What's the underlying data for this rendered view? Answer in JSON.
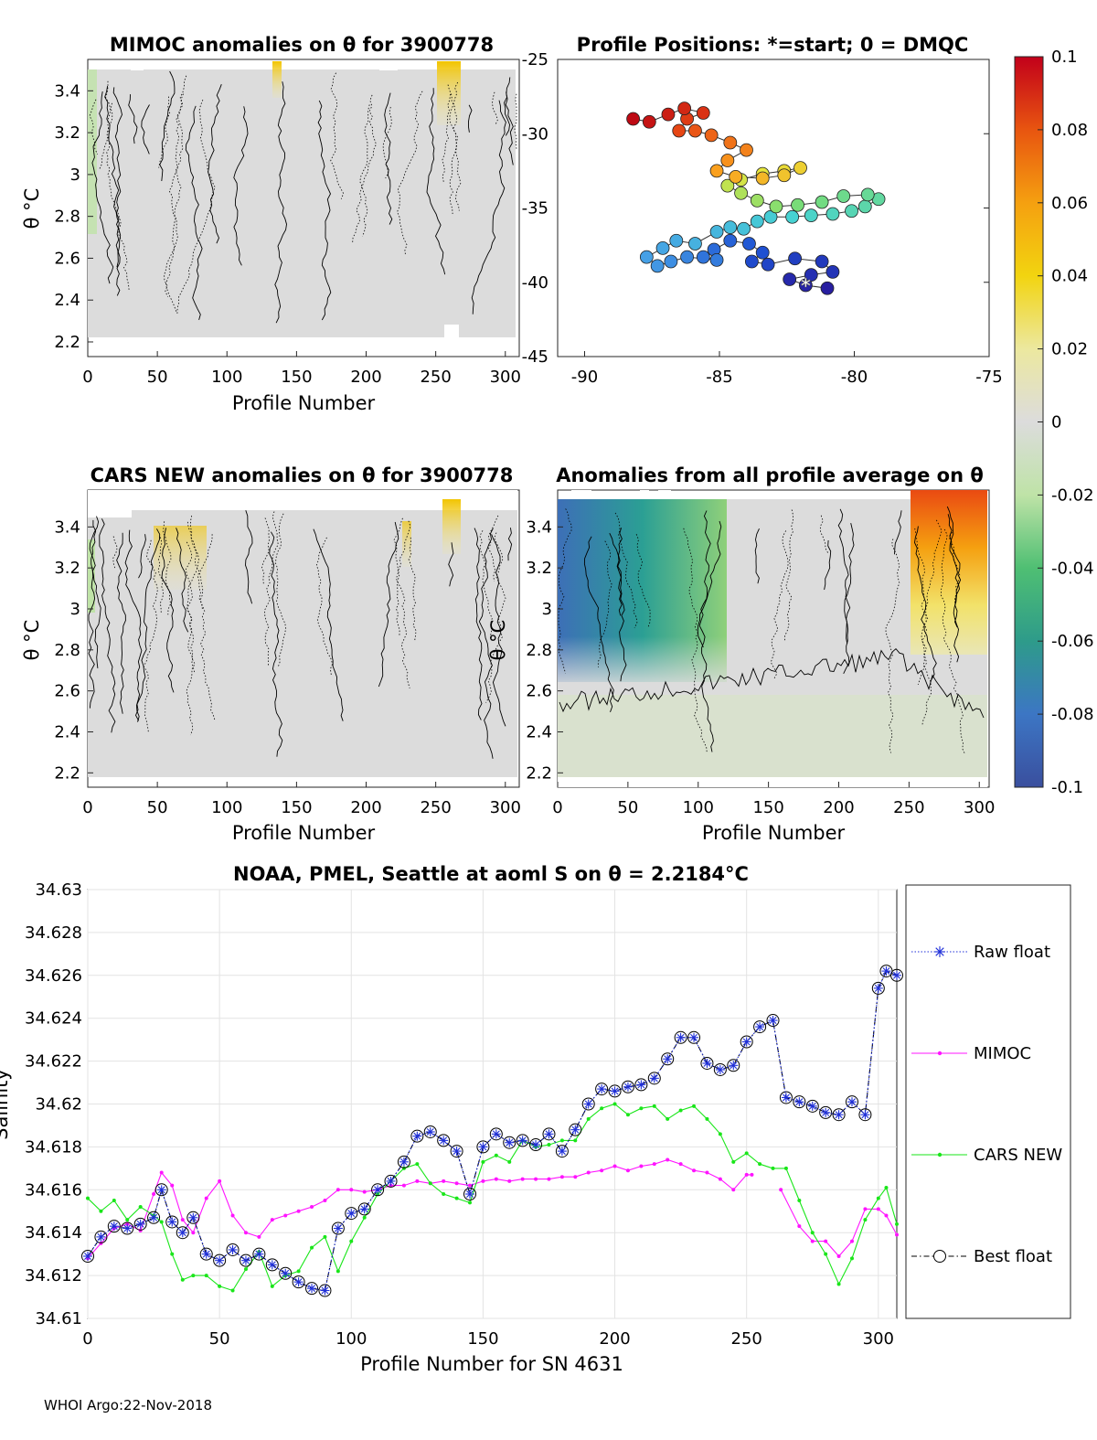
{
  "footer": "WHOI Argo:22-Nov-2018",
  "colorbar": {
    "ticks": [
      "0.1",
      "0.08",
      "0.06",
      "0.04",
      "0.02",
      "0",
      "-0.02",
      "-0.04",
      "-0.06",
      "-0.08",
      "-0.1"
    ],
    "range": [
      -0.1,
      0.1
    ]
  },
  "chart_data": [
    {
      "id": "mimoc",
      "type": "heatmap",
      "title": "MIMOC anomalies on θ  for 3900778",
      "xlabel": "Profile Number",
      "ylabel": "θ °C",
      "xlim": [
        0,
        310
      ],
      "ylim": [
        2.13,
        3.55
      ],
      "xticks": [
        "0",
        "50",
        "100",
        "150",
        "200",
        "250",
        "300"
      ],
      "yticks": [
        "2.2",
        "2.4",
        "2.6",
        "2.8",
        "3",
        "3.2",
        "3.4"
      ],
      "note": "mostly near-zero anomalies (grey), small positive patches near profiles 250-265 at theta > 3.2"
    },
    {
      "id": "positions",
      "type": "scatter",
      "title": "Profile Positions: *=start; 0 = DMQC",
      "xlim": [
        -91,
        -75
      ],
      "ylim": [
        -45,
        -25
      ],
      "xticks": [
        "-90",
        "-85",
        "-80",
        "-75"
      ],
      "yticks": [
        "-25",
        "-30",
        "-35",
        "-40",
        "-45"
      ],
      "start_marker": "*",
      "start_position": [
        -81.8,
        -40.2
      ],
      "track": [
        [
          -81.0,
          -40.4
        ],
        [
          -81.8,
          -40.2
        ],
        [
          -82.4,
          -39.8
        ],
        [
          -81.6,
          -39.5
        ],
        [
          -80.8,
          -39.3
        ],
        [
          -81.2,
          -38.6
        ],
        [
          -82.2,
          -38.4
        ],
        [
          -83.2,
          -38.8
        ],
        [
          -83.8,
          -38.6
        ],
        [
          -83.4,
          -38.0
        ],
        [
          -83.9,
          -37.4
        ],
        [
          -84.6,
          -37.2
        ],
        [
          -85.2,
          -37.8
        ],
        [
          -85.6,
          -38.3
        ],
        [
          -85.1,
          -38.5
        ],
        [
          -86.2,
          -38.3
        ],
        [
          -86.8,
          -38.6
        ],
        [
          -87.3,
          -38.9
        ],
        [
          -87.7,
          -38.3
        ],
        [
          -87.1,
          -37.7
        ],
        [
          -86.6,
          -37.2
        ],
        [
          -85.9,
          -37.4
        ],
        [
          -85.1,
          -36.6
        ],
        [
          -84.6,
          -36.3
        ],
        [
          -84.1,
          -36.4
        ],
        [
          -83.6,
          -35.9
        ],
        [
          -83.1,
          -35.6
        ],
        [
          -82.3,
          -35.6
        ],
        [
          -81.6,
          -35.5
        ],
        [
          -80.8,
          -35.4
        ],
        [
          -80.1,
          -35.2
        ],
        [
          -79.6,
          -34.9
        ],
        [
          -79.1,
          -34.4
        ],
        [
          -79.5,
          -34.1
        ],
        [
          -80.4,
          -34.2
        ],
        [
          -81.2,
          -34.6
        ],
        [
          -82.1,
          -34.8
        ],
        [
          -82.9,
          -34.9
        ],
        [
          -83.6,
          -34.5
        ],
        [
          -84.2,
          -34.0
        ],
        [
          -84.7,
          -33.5
        ],
        [
          -84.2,
          -33.1
        ],
        [
          -83.4,
          -32.7
        ],
        [
          -82.6,
          -32.5
        ],
        [
          -82.0,
          -32.3
        ],
        [
          -82.6,
          -32.8
        ],
        [
          -83.4,
          -33.0
        ],
        [
          -84.4,
          -32.9
        ],
        [
          -85.1,
          -32.5
        ],
        [
          -84.7,
          -31.8
        ],
        [
          -84.0,
          -31.1
        ],
        [
          -84.6,
          -30.6
        ],
        [
          -85.3,
          -30.1
        ],
        [
          -85.9,
          -29.8
        ],
        [
          -86.5,
          -29.8
        ],
        [
          -86.2,
          -29.0
        ],
        [
          -85.6,
          -28.6
        ],
        [
          -86.3,
          -28.3
        ],
        [
          -86.9,
          -28.7
        ],
        [
          -87.6,
          -29.2
        ],
        [
          -88.2,
          -29.0
        ]
      ]
    },
    {
      "id": "cars",
      "type": "heatmap",
      "title": "CARS NEW anomalies on θ for 3900778",
      "xlabel": "Profile Number",
      "ylabel": "θ °C",
      "xlim": [
        0,
        310
      ],
      "ylim": [
        2.13,
        3.58
      ],
      "xticks": [
        "0",
        "50",
        "100",
        "150",
        "200",
        "250",
        "300"
      ],
      "yticks": [
        "2.2",
        "2.4",
        "2.6",
        "2.8",
        "3",
        "3.2",
        "3.4"
      ],
      "note": "mostly near-zero anomalies, slight positive patches near profiles 60-80 and 240-265 at theta > 3.1"
    },
    {
      "id": "allavg",
      "type": "heatmap",
      "title": "Anomalies from all profile average on θ",
      "xlabel": "Profile Number",
      "ylabel": "θ °C",
      "xlim": [
        0,
        307
      ],
      "ylim": [
        2.13,
        3.58
      ],
      "xticks": [
        "0",
        "50",
        "100",
        "150",
        "200",
        "250",
        "300"
      ],
      "yticks": [
        "2.2",
        "2.4",
        "2.6",
        "2.8",
        "3",
        "3.2",
        "3.4"
      ],
      "note": "negative anomalies (-0.06 to -0.08) for profiles 0-100 at theta > 2.9, positive anomalies (+0.04 to +0.1) for profiles 255-307 at theta > 3.0"
    },
    {
      "id": "salinity",
      "type": "line",
      "title": "NOAA, PMEL, Seattle at aoml S on θ = 2.2184°C",
      "xlabel": "Profile Number for SN 4631",
      "ylabel": "Salinity",
      "xlim": [
        0,
        307
      ],
      "ylim": [
        34.61,
        34.63
      ],
      "xticks": [
        "0",
        "50",
        "100",
        "150",
        "200",
        "250",
        "300"
      ],
      "yticks": [
        "34.63",
        "34.628",
        "34.626",
        "34.624",
        "34.622",
        "34.62",
        "34.618",
        "34.616",
        "34.614",
        "34.612",
        "34.61"
      ],
      "series": [
        {
          "name": "Raw float",
          "color": "#1f2fd8",
          "x": [
            0,
            5,
            10,
            15,
            20,
            25,
            28,
            32,
            36,
            40,
            45,
            50,
            55,
            60,
            65,
            70,
            75,
            80,
            85,
            90,
            95,
            100,
            105,
            110,
            115,
            120,
            125,
            130,
            135,
            140,
            145,
            150,
            155,
            160,
            165,
            170,
            175,
            180,
            185,
            190,
            195,
            200,
            205,
            210,
            215,
            220,
            225,
            230,
            235,
            240,
            245,
            250,
            255,
            260,
            265,
            270,
            275,
            280,
            285,
            290,
            295,
            300,
            303,
            307
          ],
          "values": [
            34.6129,
            34.6138,
            34.6143,
            34.6142,
            34.6144,
            34.6147,
            34.616,
            34.6145,
            34.614,
            34.6147,
            34.613,
            34.6127,
            34.6132,
            34.6127,
            34.613,
            34.6125,
            34.6121,
            34.6117,
            34.6114,
            34.6113,
            34.6142,
            34.6149,
            34.6151,
            34.616,
            34.6164,
            34.6173,
            34.6185,
            34.6187,
            34.6183,
            34.6178,
            34.6158,
            34.618,
            34.6186,
            34.6182,
            34.6183,
            34.6181,
            34.6186,
            34.6178,
            34.6188,
            34.62,
            34.6207,
            34.6206,
            34.6208,
            34.6209,
            34.6212,
            34.6221,
            34.6231,
            34.6231,
            34.6219,
            34.6216,
            34.6218,
            34.6229,
            34.6236,
            34.6239,
            34.6203,
            34.6201,
            34.6199,
            34.6196,
            34.6195,
            34.6201,
            34.6195,
            34.6254,
            34.6262,
            34.626
          ]
        },
        {
          "name": "MIMOC",
          "color": "#ff14ff",
          "x": [
            0,
            5,
            10,
            15,
            20,
            25,
            28,
            32,
            36,
            40,
            45,
            50,
            55,
            60,
            65,
            70,
            75,
            80,
            85,
            90,
            95,
            100,
            105,
            110,
            115,
            120,
            125,
            130,
            135,
            140,
            145,
            150,
            155,
            160,
            165,
            170,
            175,
            180,
            185,
            190,
            195,
            200,
            205,
            210,
            215,
            220,
            225,
            230,
            235,
            240,
            245,
            250,
            252,
            null,
            263,
            270,
            275,
            280,
            285,
            290,
            295,
            300,
            303,
            307
          ],
          "values": [
            34.6128,
            34.6135,
            34.6142,
            34.6144,
            34.6141,
            34.6158,
            34.6168,
            34.6162,
            34.6146,
            34.614,
            34.6156,
            34.6164,
            34.6148,
            34.614,
            34.6138,
            34.6146,
            34.6148,
            34.615,
            34.6152,
            34.6155,
            34.616,
            34.616,
            34.6159,
            34.616,
            34.6162,
            34.6162,
            34.6164,
            34.6163,
            34.6164,
            34.6163,
            34.6162,
            34.6164,
            34.6165,
            34.6164,
            34.6165,
            34.6165,
            34.6165,
            34.6166,
            34.6166,
            34.6168,
            34.6169,
            34.6171,
            34.6169,
            34.6171,
            34.6172,
            34.6174,
            34.6172,
            34.6169,
            34.6168,
            34.6165,
            34.616,
            34.6167,
            34.6167,
            null,
            34.616,
            34.6143,
            34.6136,
            34.6136,
            34.6129,
            34.6136,
            34.6151,
            34.6151,
            34.6148,
            34.6139
          ]
        },
        {
          "name": "CARS NEW",
          "color": "#19e619",
          "x": [
            0,
            5,
            10,
            15,
            20,
            25,
            28,
            32,
            36,
            40,
            45,
            50,
            55,
            60,
            65,
            70,
            75,
            80,
            85,
            90,
            95,
            100,
            105,
            110,
            115,
            120,
            125,
            130,
            135,
            140,
            145,
            150,
            155,
            160,
            165,
            170,
            175,
            180,
            185,
            190,
            195,
            200,
            205,
            210,
            215,
            220,
            225,
            230,
            235,
            240,
            245,
            250,
            255,
            260,
            265,
            270,
            275,
            280,
            285,
            290,
            295,
            300,
            303,
            307
          ],
          "values": [
            34.6156,
            34.615,
            34.6155,
            34.6146,
            34.6152,
            34.6148,
            34.6145,
            34.613,
            34.6118,
            34.612,
            34.612,
            34.6115,
            34.6113,
            34.6123,
            34.6131,
            34.6115,
            34.612,
            34.6122,
            34.6133,
            34.6138,
            34.6122,
            34.6136,
            34.6147,
            34.6158,
            34.6164,
            34.617,
            34.6172,
            34.6163,
            34.6158,
            34.6156,
            34.6154,
            34.6173,
            34.6176,
            34.6173,
            34.6183,
            34.618,
            34.6181,
            34.6183,
            34.6183,
            34.6193,
            34.6198,
            34.62,
            34.6195,
            34.6198,
            34.6199,
            34.6193,
            34.6197,
            34.6199,
            34.6193,
            34.6186,
            34.6173,
            34.6177,
            34.6172,
            34.617,
            34.617,
            34.6155,
            34.614,
            34.613,
            34.6116,
            34.6128,
            34.6146,
            34.6156,
            34.6161,
            34.6144
          ]
        },
        {
          "name": "Best float",
          "color": "#000000",
          "x": [
            0,
            5,
            10,
            15,
            20,
            25,
            28,
            32,
            36,
            40,
            45,
            50,
            55,
            60,
            65,
            70,
            75,
            80,
            85,
            90,
            95,
            100,
            105,
            110,
            115,
            120,
            125,
            130,
            135,
            140,
            145,
            150,
            155,
            160,
            165,
            170,
            175,
            180,
            185,
            190,
            195,
            200,
            205,
            210,
            215,
            220,
            225,
            230,
            235,
            240,
            245,
            250,
            255,
            260,
            265,
            270,
            275,
            280,
            285,
            290,
            295,
            300,
            303,
            307
          ],
          "values": [
            34.6129,
            34.6138,
            34.6143,
            34.6142,
            34.6144,
            34.6147,
            34.616,
            34.6145,
            34.614,
            34.6147,
            34.613,
            34.6127,
            34.6132,
            34.6127,
            34.613,
            34.6125,
            34.6121,
            34.6117,
            34.6114,
            34.6113,
            34.6142,
            34.6149,
            34.6151,
            34.616,
            34.6164,
            34.6173,
            34.6185,
            34.6187,
            34.6183,
            34.6178,
            34.6158,
            34.618,
            34.6186,
            34.6182,
            34.6183,
            34.6181,
            34.6186,
            34.6178,
            34.6188,
            34.62,
            34.6207,
            34.6206,
            34.6208,
            34.6209,
            34.6212,
            34.6221,
            34.6231,
            34.6231,
            34.6219,
            34.6216,
            34.6218,
            34.6229,
            34.6236,
            34.6239,
            34.6203,
            34.6201,
            34.6199,
            34.6196,
            34.6195,
            34.6201,
            34.6195,
            34.6254,
            34.6262,
            34.626
          ]
        }
      ]
    }
  ]
}
